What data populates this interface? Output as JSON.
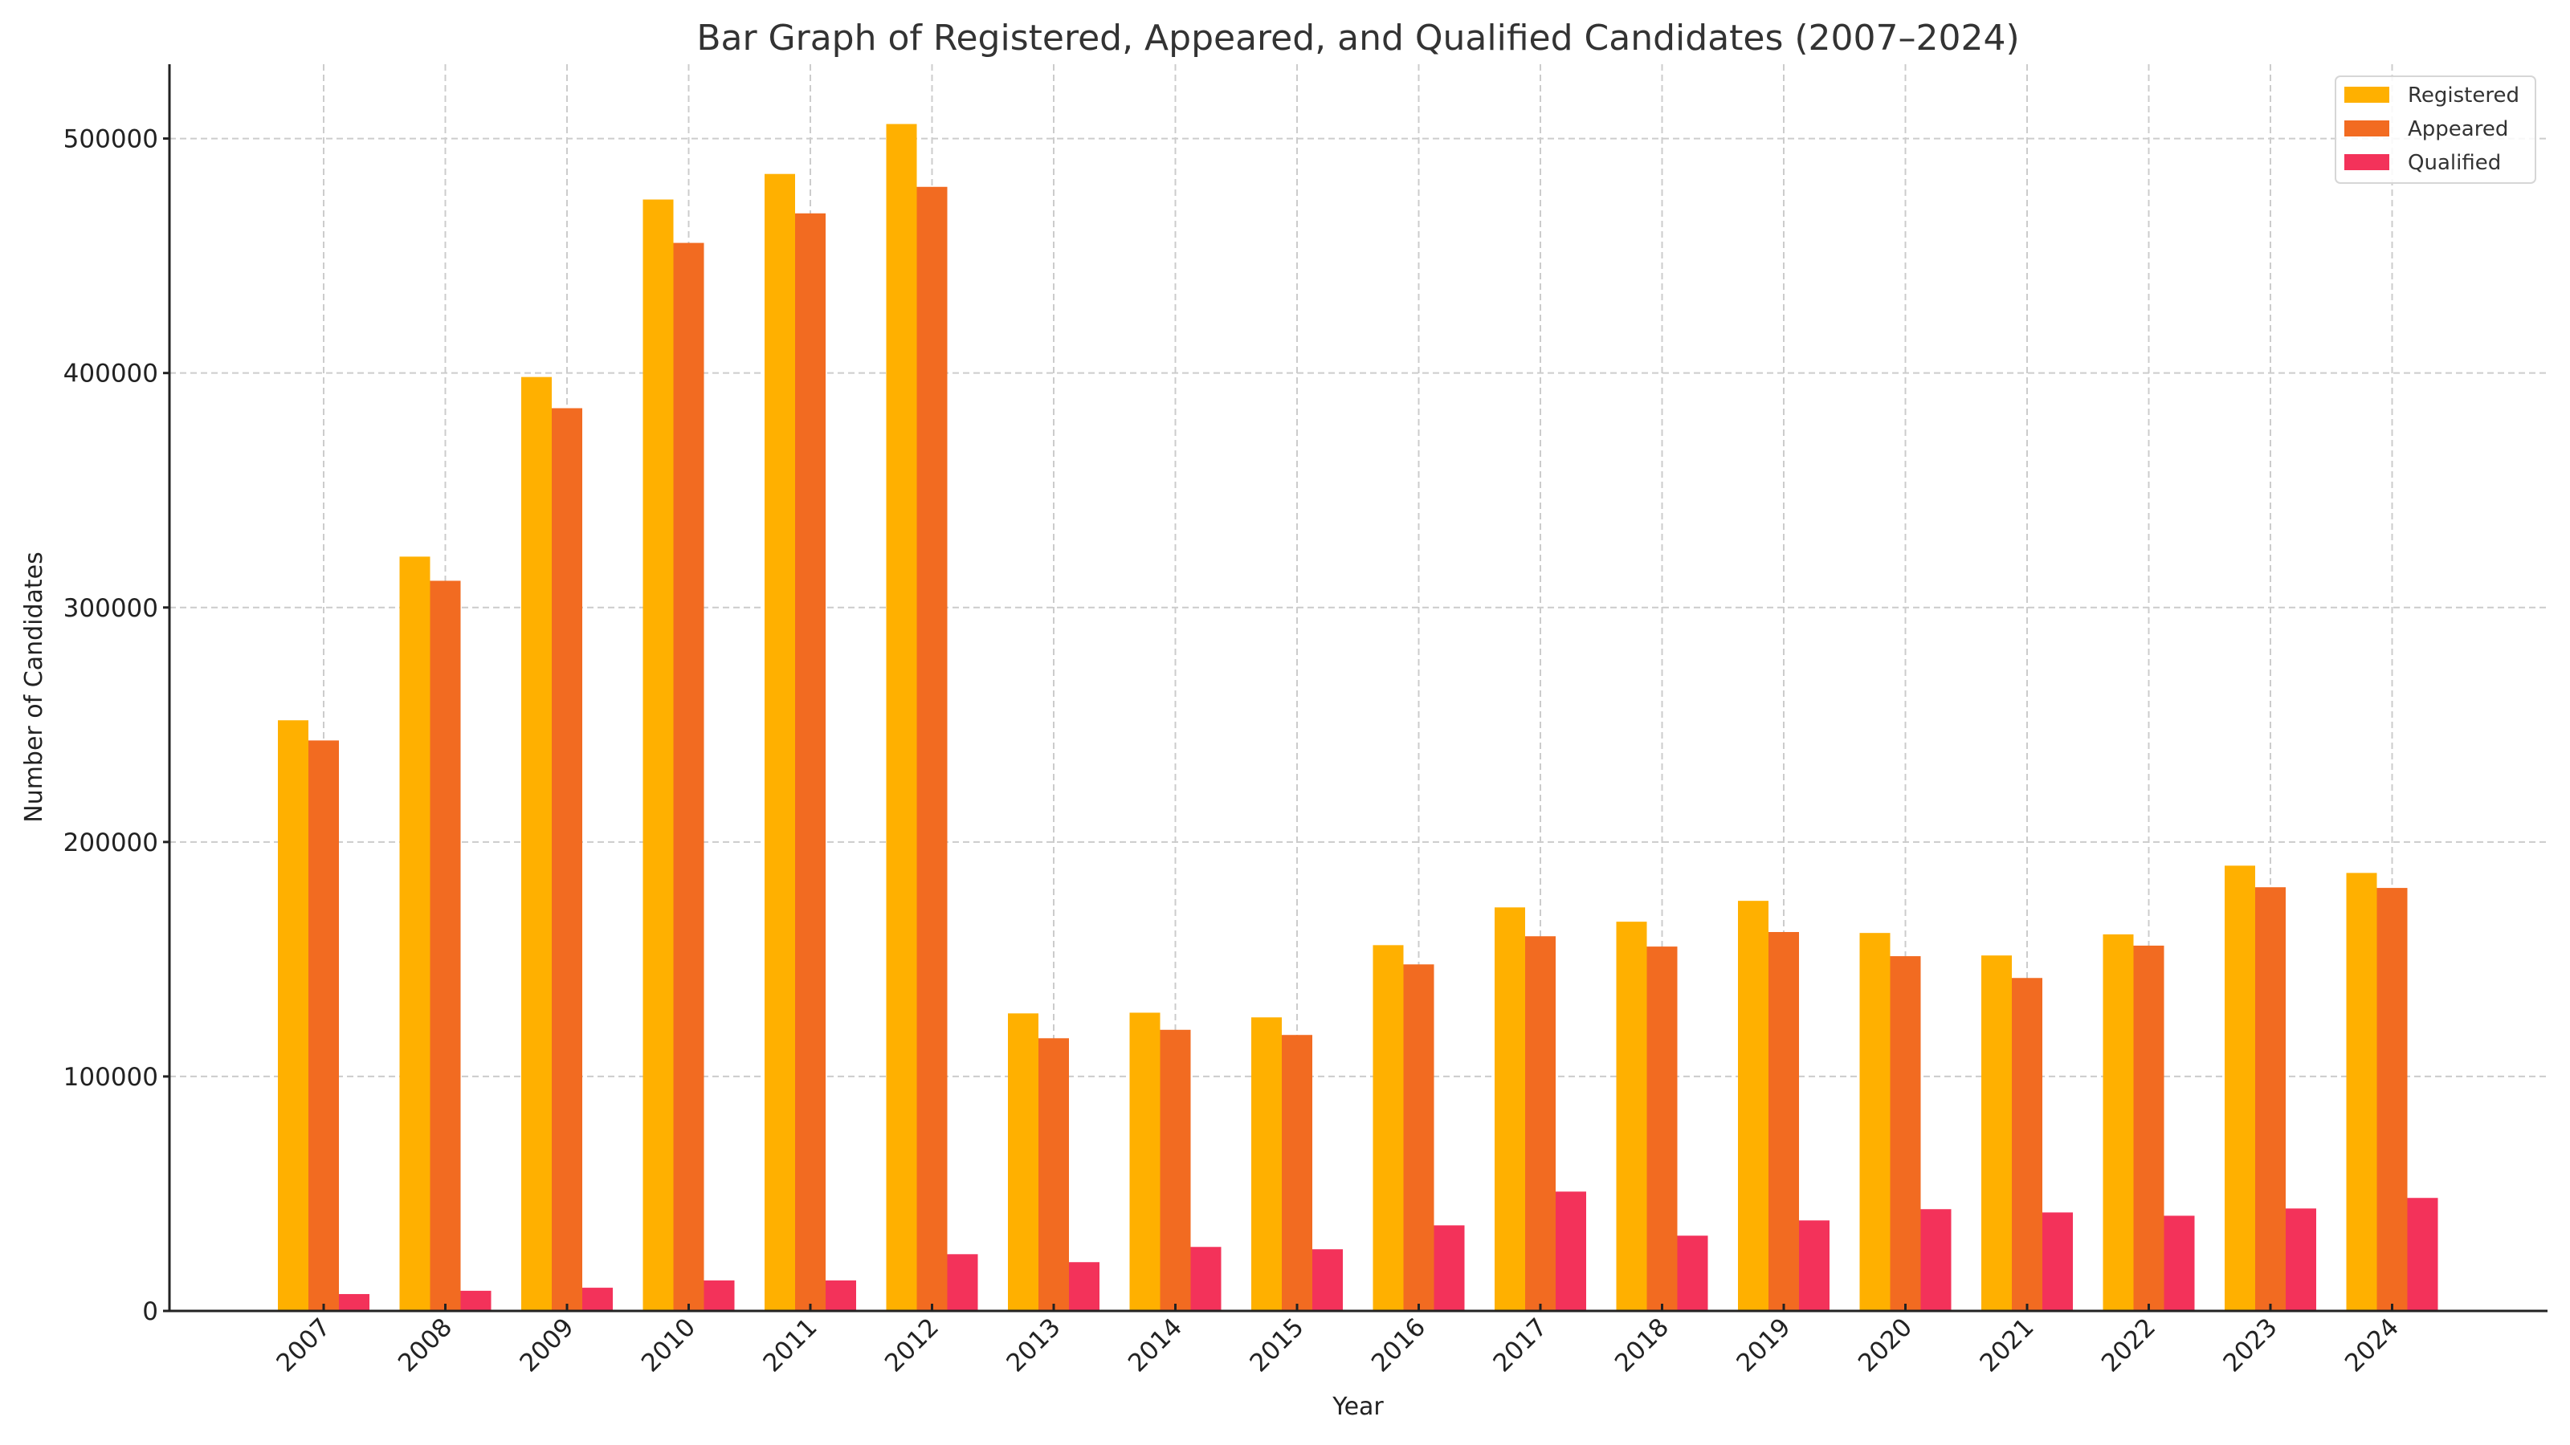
{
  "chart_data": {
    "type": "bar",
    "title": "Bar Graph of Registered, Appeared, and Qualified Candidates (2007–2024)",
    "xlabel": "Year",
    "ylabel": "Number of Candidates",
    "ylim": [
      0,
      531700
    ],
    "yticks": [
      0,
      100000,
      200000,
      300000,
      400000,
      500000
    ],
    "ytick_labels": [
      "0",
      "100000",
      "200000",
      "300000",
      "400000",
      "500000"
    ],
    "grid": true,
    "legend_position": "top-right",
    "categories": [
      "2007",
      "2008",
      "2009",
      "2010",
      "2011",
      "2012",
      "2013",
      "2014",
      "2015",
      "2016",
      "2017",
      "2018",
      "2019",
      "2020",
      "2021",
      "2022",
      "2023",
      "2024"
    ],
    "series": [
      {
        "name": "Registered",
        "color": "#FFB000",
        "values": [
          251900,
          321700,
          398300,
          474000,
          484900,
          506200,
          126900,
          127200,
          125200,
          156000,
          172100,
          166000,
          174900,
          161200,
          151600,
          160600,
          189900,
          186800
        ]
      },
      {
        "name": "Appeared",
        "color": "#F26B21",
        "values": [
          243300,
          311400,
          385000,
          455500,
          468100,
          479400,
          116300,
          119900,
          117700,
          147800,
          159800,
          155400,
          161600,
          151300,
          142000,
          155800,
          180700,
          180400
        ]
      },
      {
        "name": "Qualified",
        "color": "#F3325A",
        "values": [
          7200,
          8600,
          9900,
          13000,
          13000,
          24200,
          20800,
          27300,
          26300,
          36500,
          50900,
          32100,
          38600,
          43400,
          42000,
          40600,
          43700,
          48200
        ]
      }
    ]
  }
}
